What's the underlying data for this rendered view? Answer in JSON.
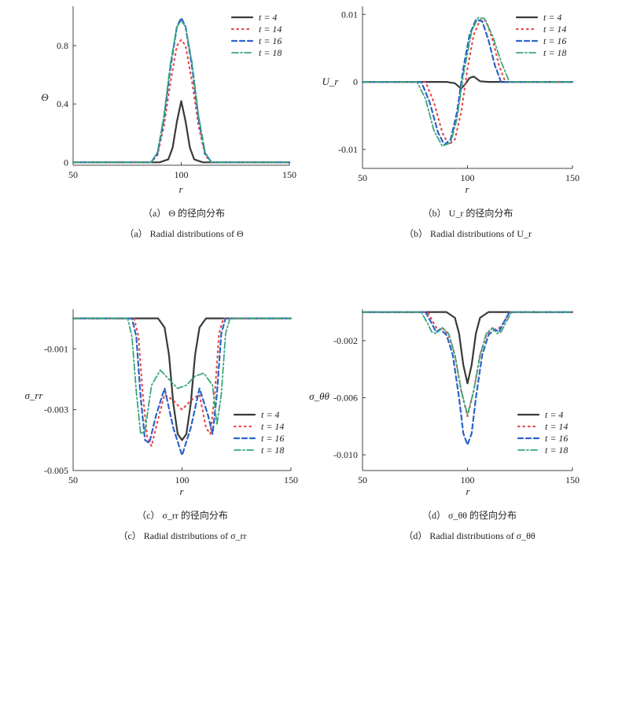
{
  "line_styles": {
    "t = 4": {
      "color": "#3a3a3a",
      "dash": "",
      "width": 2.2
    },
    "t = 14": {
      "color": "#e8474a",
      "dash": "1.5 5",
      "width": 2.2
    },
    "t = 16": {
      "color": "#2b64c8",
      "dash": "6 4",
      "width": 2.2
    },
    "t = 18": {
      "color": "#3aa77a",
      "dash": "8 3 2 3",
      "width": 1.8
    }
  },
  "chart_data": [
    {
      "id": "a",
      "type": "line",
      "ylabel": "Θ",
      "xlabel": "r",
      "xlim": [
        50,
        150
      ],
      "ylim": [
        -0.02,
        1.07
      ],
      "xticks": [
        "50",
        "100",
        "150"
      ],
      "xtick_values": [
        50,
        100,
        150
      ],
      "yticks": [
        "0",
        "0.4",
        "0.8"
      ],
      "ytick_values": [
        0,
        0.4,
        0.8
      ],
      "legend_position": "top-right",
      "caption_cn": "（a） Θ 的径向分布",
      "caption_en": "（a） Radial distributions of Θ",
      "series": [
        {
          "name": "t = 4",
          "x": [
            50,
            90,
            94,
            96,
            98,
            100,
            102,
            104,
            106,
            110,
            150
          ],
          "y": [
            0,
            0,
            0.02,
            0.1,
            0.28,
            0.42,
            0.28,
            0.1,
            0.02,
            0,
            0
          ]
        },
        {
          "name": "t = 14",
          "x": [
            50,
            86,
            89,
            92,
            95,
            98,
            100,
            102,
            105,
            108,
            111,
            114,
            150
          ],
          "y": [
            0,
            0,
            0.05,
            0.25,
            0.55,
            0.8,
            0.84,
            0.8,
            0.55,
            0.25,
            0.05,
            0,
            0
          ]
        },
        {
          "name": "t = 16",
          "x": [
            50,
            86,
            89,
            92,
            95,
            98,
            100,
            102,
            105,
            108,
            111,
            114,
            150
          ],
          "y": [
            0,
            0,
            0.06,
            0.3,
            0.65,
            0.93,
            0.99,
            0.93,
            0.65,
            0.3,
            0.06,
            0,
            0
          ]
        },
        {
          "name": "t = 18",
          "x": [
            50,
            86,
            89,
            92,
            95,
            98,
            100,
            102,
            105,
            108,
            111,
            114,
            150
          ],
          "y": [
            0,
            0,
            0.07,
            0.32,
            0.68,
            0.93,
            0.97,
            0.93,
            0.68,
            0.32,
            0.07,
            0,
            0
          ]
        }
      ]
    },
    {
      "id": "b",
      "type": "line",
      "ylabel": "U_r",
      "xlabel": "r",
      "xlim": [
        50,
        150
      ],
      "ylim": [
        -0.0128,
        0.0112
      ],
      "xticks": [
        "50",
        "100",
        "150"
      ],
      "xtick_values": [
        50,
        100,
        150
      ],
      "yticks": [
        "-0.01",
        "0",
        "0.01"
      ],
      "ytick_values": [
        -0.01,
        0,
        0.01
      ],
      "legend_position": "top-right",
      "caption_cn": "（b） U_r 的径向分布",
      "caption_en": "（b） Radial distributions of U_r",
      "series": [
        {
          "name": "t = 4",
          "x": [
            50,
            90,
            94,
            97,
            99,
            101,
            103,
            106,
            110,
            150
          ],
          "y": [
            0,
            0,
            -0.0002,
            -0.001,
            -0.0003,
            0.0006,
            0.0008,
            0.0001,
            0,
            0
          ]
        },
        {
          "name": "t = 14",
          "x": [
            50,
            80,
            84,
            88,
            91,
            94,
            97,
            100,
            103,
            106,
            109,
            112,
            115,
            118,
            150
          ],
          "y": [
            0,
            0,
            -0.003,
            -0.0075,
            -0.0093,
            -0.0085,
            -0.0045,
            0.002,
            0.007,
            0.0092,
            0.009,
            0.0062,
            0.0025,
            0,
            0
          ]
        },
        {
          "name": "t = 16",
          "x": [
            50,
            78,
            82,
            86,
            89,
            92,
            95,
            98,
            101,
            104,
            107,
            110,
            113,
            116,
            150
          ],
          "y": [
            0,
            0,
            -0.003,
            -0.0075,
            -0.0093,
            -0.0085,
            -0.0045,
            0.002,
            0.007,
            0.0092,
            0.009,
            0.0062,
            0.0025,
            0,
            0
          ]
        },
        {
          "name": "t = 18",
          "x": [
            50,
            76,
            80,
            84,
            88,
            92,
            95,
            98,
            102,
            105,
            108,
            112,
            116,
            120,
            150
          ],
          "y": [
            0,
            0,
            -0.0025,
            -0.0072,
            -0.0095,
            -0.009,
            -0.0055,
            0.001,
            0.0075,
            0.0095,
            0.0094,
            0.0068,
            0.003,
            0,
            0
          ]
        }
      ]
    },
    {
      "id": "c",
      "type": "line",
      "ylabel": "σ_rr",
      "xlabel": "r",
      "xlim": [
        50,
        150
      ],
      "ylim": [
        -0.005,
        0.0003
      ],
      "xticks": [
        "50",
        "100",
        "150"
      ],
      "xtick_values": [
        50,
        100,
        150
      ],
      "yticks": [
        "-0.001",
        "-0.003",
        "-0.005"
      ],
      "ytick_values": [
        -0.001,
        -0.003,
        -0.005
      ],
      "legend_position": "bottom-right",
      "caption_cn": "（c） σ_rr 的径向分布",
      "caption_en": "（c） Radial distributions of σ_rr",
      "series": [
        {
          "name": "t = 4",
          "x": [
            50,
            89,
            92,
            94,
            96,
            98,
            100,
            102,
            104,
            106,
            108,
            111,
            150
          ],
          "y": [
            0,
            0,
            -0.0003,
            -0.0012,
            -0.0028,
            -0.0038,
            -0.004,
            -0.0038,
            -0.0028,
            -0.0012,
            -0.0003,
            0,
            0
          ]
        },
        {
          "name": "t = 14",
          "x": [
            50,
            78,
            80,
            82,
            84,
            86,
            88,
            92,
            96,
            100,
            104,
            108,
            111,
            113,
            115,
            117,
            119,
            150
          ],
          "y": [
            0,
            0,
            -0.0006,
            -0.0025,
            -0.0039,
            -0.0042,
            -0.0036,
            -0.0025,
            -0.0027,
            -0.003,
            -0.0027,
            -0.0025,
            -0.0036,
            -0.0038,
            -0.0025,
            -0.0005,
            0,
            0
          ]
        },
        {
          "name": "t = 16",
          "x": [
            50,
            77,
            79,
            81,
            83,
            85,
            88,
            92,
            96,
            100,
            104,
            108,
            112,
            114,
            116,
            118,
            120,
            150
          ],
          "y": [
            0,
            0,
            -0.0006,
            -0.0026,
            -0.004,
            -0.0041,
            -0.0032,
            -0.0023,
            -0.0036,
            -0.0045,
            -0.0036,
            -0.0023,
            -0.0032,
            -0.0038,
            -0.0025,
            -0.0005,
            0,
            0
          ]
        },
        {
          "name": "t = 18",
          "x": [
            50,
            75,
            77,
            79,
            81,
            83,
            86,
            90,
            94,
            98,
            102,
            106,
            110,
            114,
            116,
            118,
            120,
            122,
            150
          ],
          "y": [
            0,
            0,
            -0.0006,
            -0.0024,
            -0.0038,
            -0.0037,
            -0.0022,
            -0.0017,
            -0.002,
            -0.0023,
            -0.0022,
            -0.0019,
            -0.0018,
            -0.0022,
            -0.0035,
            -0.0025,
            -0.0005,
            0,
            0
          ]
        }
      ]
    },
    {
      "id": "d",
      "type": "line",
      "ylabel": "σ_θθ",
      "xlabel": "r",
      "xlim": [
        50,
        150
      ],
      "ylim": [
        -0.0111,
        0.0002
      ],
      "xticks": [
        "50",
        "100",
        "150"
      ],
      "xtick_values": [
        50,
        100,
        150
      ],
      "yticks": [
        "-0.002",
        "-0.006",
        "-0.010"
      ],
      "ytick_values": [
        -0.002,
        -0.006,
        -0.01
      ],
      "legend_position": "bottom-right",
      "caption_cn": "（d） σ_θθ 的径向分布",
      "caption_en": "（d） Radial distributions of σ_θθ",
      "series": [
        {
          "name": "t = 4",
          "x": [
            50,
            90,
            94,
            96,
            98,
            100,
            102,
            104,
            106,
            110,
            150
          ],
          "y": [
            0,
            0,
            -0.0004,
            -0.0015,
            -0.0037,
            -0.005,
            -0.0037,
            -0.0015,
            -0.0004,
            0,
            0
          ]
        },
        {
          "name": "t = 14",
          "x": [
            50,
            81,
            84,
            86,
            88,
            91,
            94,
            97,
            100,
            103,
            106,
            109,
            112,
            114,
            117,
            120,
            150
          ],
          "y": [
            0,
            0,
            -0.0008,
            -0.0013,
            -0.0011,
            -0.0016,
            -0.003,
            -0.0055,
            -0.0073,
            -0.0055,
            -0.003,
            -0.0016,
            -0.0011,
            -0.0013,
            -0.0008,
            0,
            0
          ]
        },
        {
          "name": "t = 16",
          "x": [
            50,
            80,
            83,
            85,
            87,
            90,
            93,
            96,
            98,
            100,
            102,
            104,
            107,
            110,
            113,
            115,
            117,
            120,
            150
          ],
          "y": [
            0,
            0,
            -0.0008,
            -0.0014,
            -0.0012,
            -0.0016,
            -0.003,
            -0.006,
            -0.0085,
            -0.0093,
            -0.0085,
            -0.006,
            -0.003,
            -0.0016,
            -0.0012,
            -0.0014,
            -0.0008,
            0,
            0
          ]
        },
        {
          "name": "t = 18",
          "x": [
            50,
            78,
            81,
            83,
            85,
            88,
            91,
            94,
            97,
            100,
            103,
            106,
            109,
            112,
            114,
            116,
            118,
            121,
            150
          ],
          "y": [
            0,
            0,
            -0.0008,
            -0.0014,
            -0.0015,
            -0.0011,
            -0.0015,
            -0.003,
            -0.0055,
            -0.0072,
            -0.0055,
            -0.003,
            -0.0015,
            -0.0011,
            -0.0015,
            -0.0014,
            -0.0008,
            0,
            0
          ]
        }
      ]
    }
  ]
}
